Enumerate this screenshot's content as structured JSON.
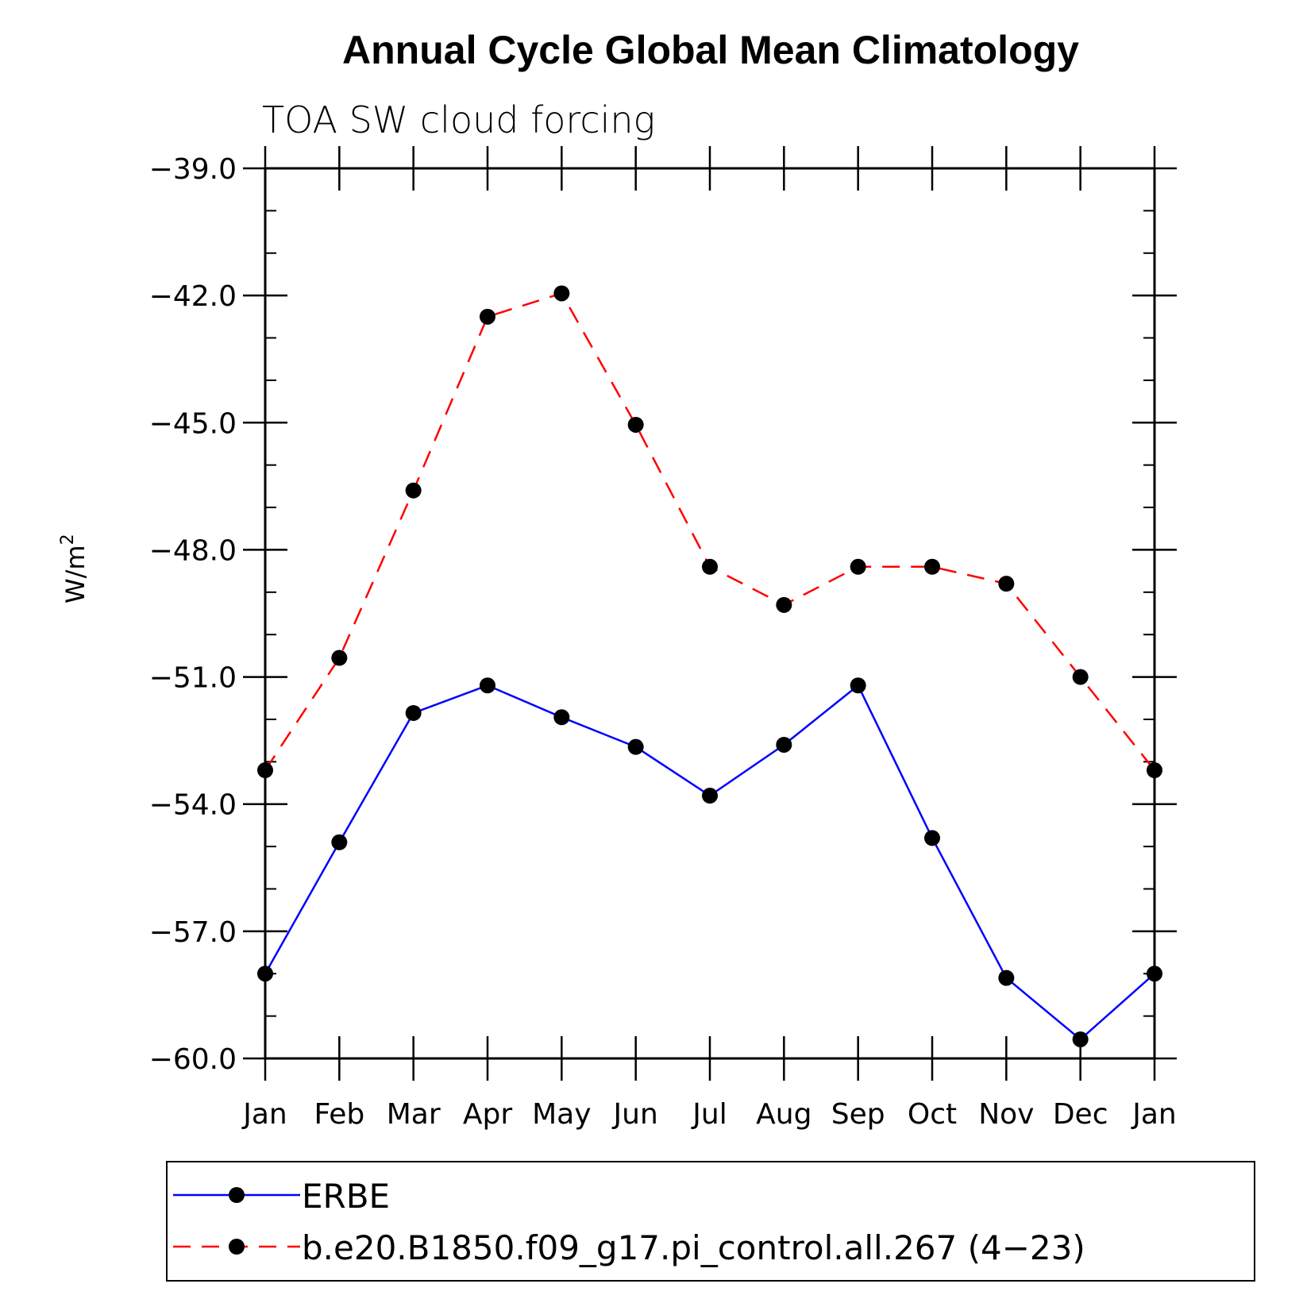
{
  "chart_data": {
    "type": "line",
    "title": "Annual Cycle Global Mean Climatology",
    "subtitle": "TOA SW cloud forcing",
    "ylabel": "W/m",
    "ylabel_superscript": "2",
    "ylim": [
      -60.0,
      -39.0
    ],
    "yticks": [
      "-39.0",
      "-42.0",
      "-45.0",
      "-48.0",
      "-51.0",
      "-54.0",
      "-57.0",
      "-60.0"
    ],
    "ytick_values": [
      -39,
      -42,
      -45,
      -48,
      -51,
      -54,
      -57,
      -60
    ],
    "categories": [
      "Jan",
      "Feb",
      "Mar",
      "Apr",
      "May",
      "Jun",
      "Jul",
      "Aug",
      "Sep",
      "Oct",
      "Nov",
      "Dec",
      "Jan"
    ],
    "series": [
      {
        "name": "ERBE",
        "color": "#0000ff",
        "dash": "solid",
        "values": [
          -58.0,
          -54.9,
          -51.85,
          -51.2,
          -51.95,
          -52.65,
          -53.8,
          -52.6,
          -51.2,
          -54.8,
          -58.1,
          -59.55,
          -58.0
        ]
      },
      {
        "name": "b.e20.B1850.f09_g17.pi_control.all.267 (4−23)",
        "color": "#ff0000",
        "dash": "dashed",
        "values": [
          -53.2,
          -50.55,
          -46.6,
          -42.5,
          -41.95,
          -45.05,
          -48.4,
          -49.3,
          -48.4,
          -48.4,
          -48.8,
          -51.0,
          -53.2
        ]
      }
    ],
    "legend_position": "bottom"
  }
}
